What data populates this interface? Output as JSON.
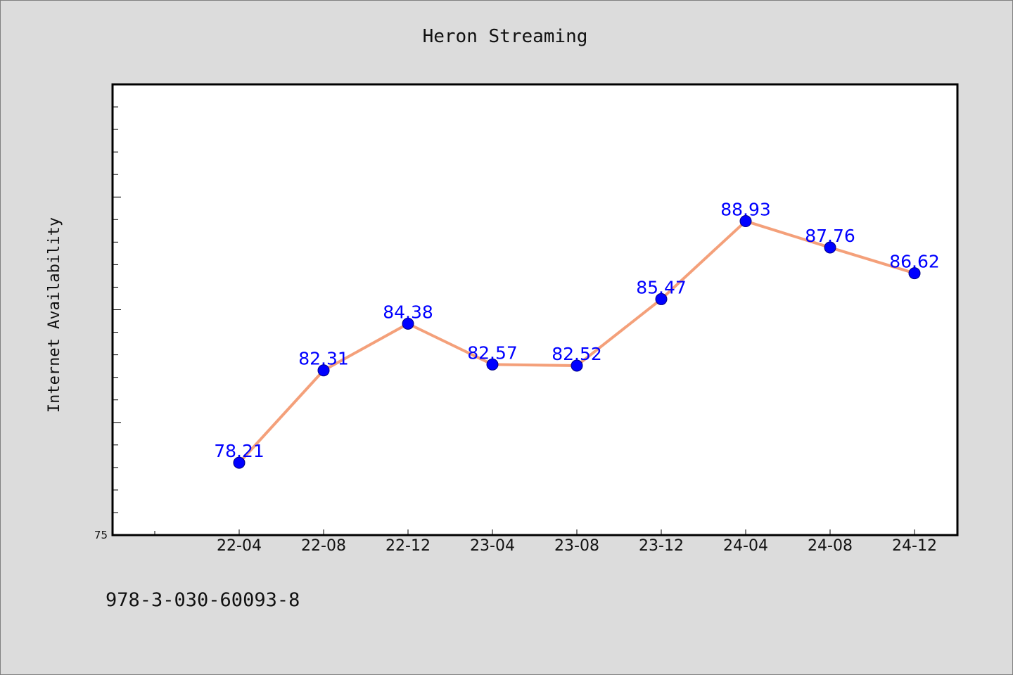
{
  "chart_data": {
    "type": "line",
    "title": "Heron Streaming",
    "xlabel": "",
    "ylabel": "Internet Availability",
    "categories": [
      "22-04",
      "22-08",
      "22-12",
      "23-04",
      "23-08",
      "23-12",
      "24-04",
      "24-08",
      "24-12"
    ],
    "series": [
      {
        "values": [
          78.21,
          82.31,
          84.38,
          82.57,
          82.52,
          85.47,
          88.93,
          87.76,
          86.62
        ],
        "labels": [
          "78.21",
          "82.31",
          "84.38",
          "82.57",
          "82.52",
          "85.47",
          "88.93",
          "87.76",
          "86.62"
        ],
        "line_color": "#f4a07a",
        "marker_color": "#0000ff"
      }
    ],
    "ylim": [
      75,
      95
    ],
    "yticks": [
      75
    ],
    "grid": false,
    "legend": "none"
  },
  "footer": {
    "isbn": "978-3-030-60093-8"
  }
}
